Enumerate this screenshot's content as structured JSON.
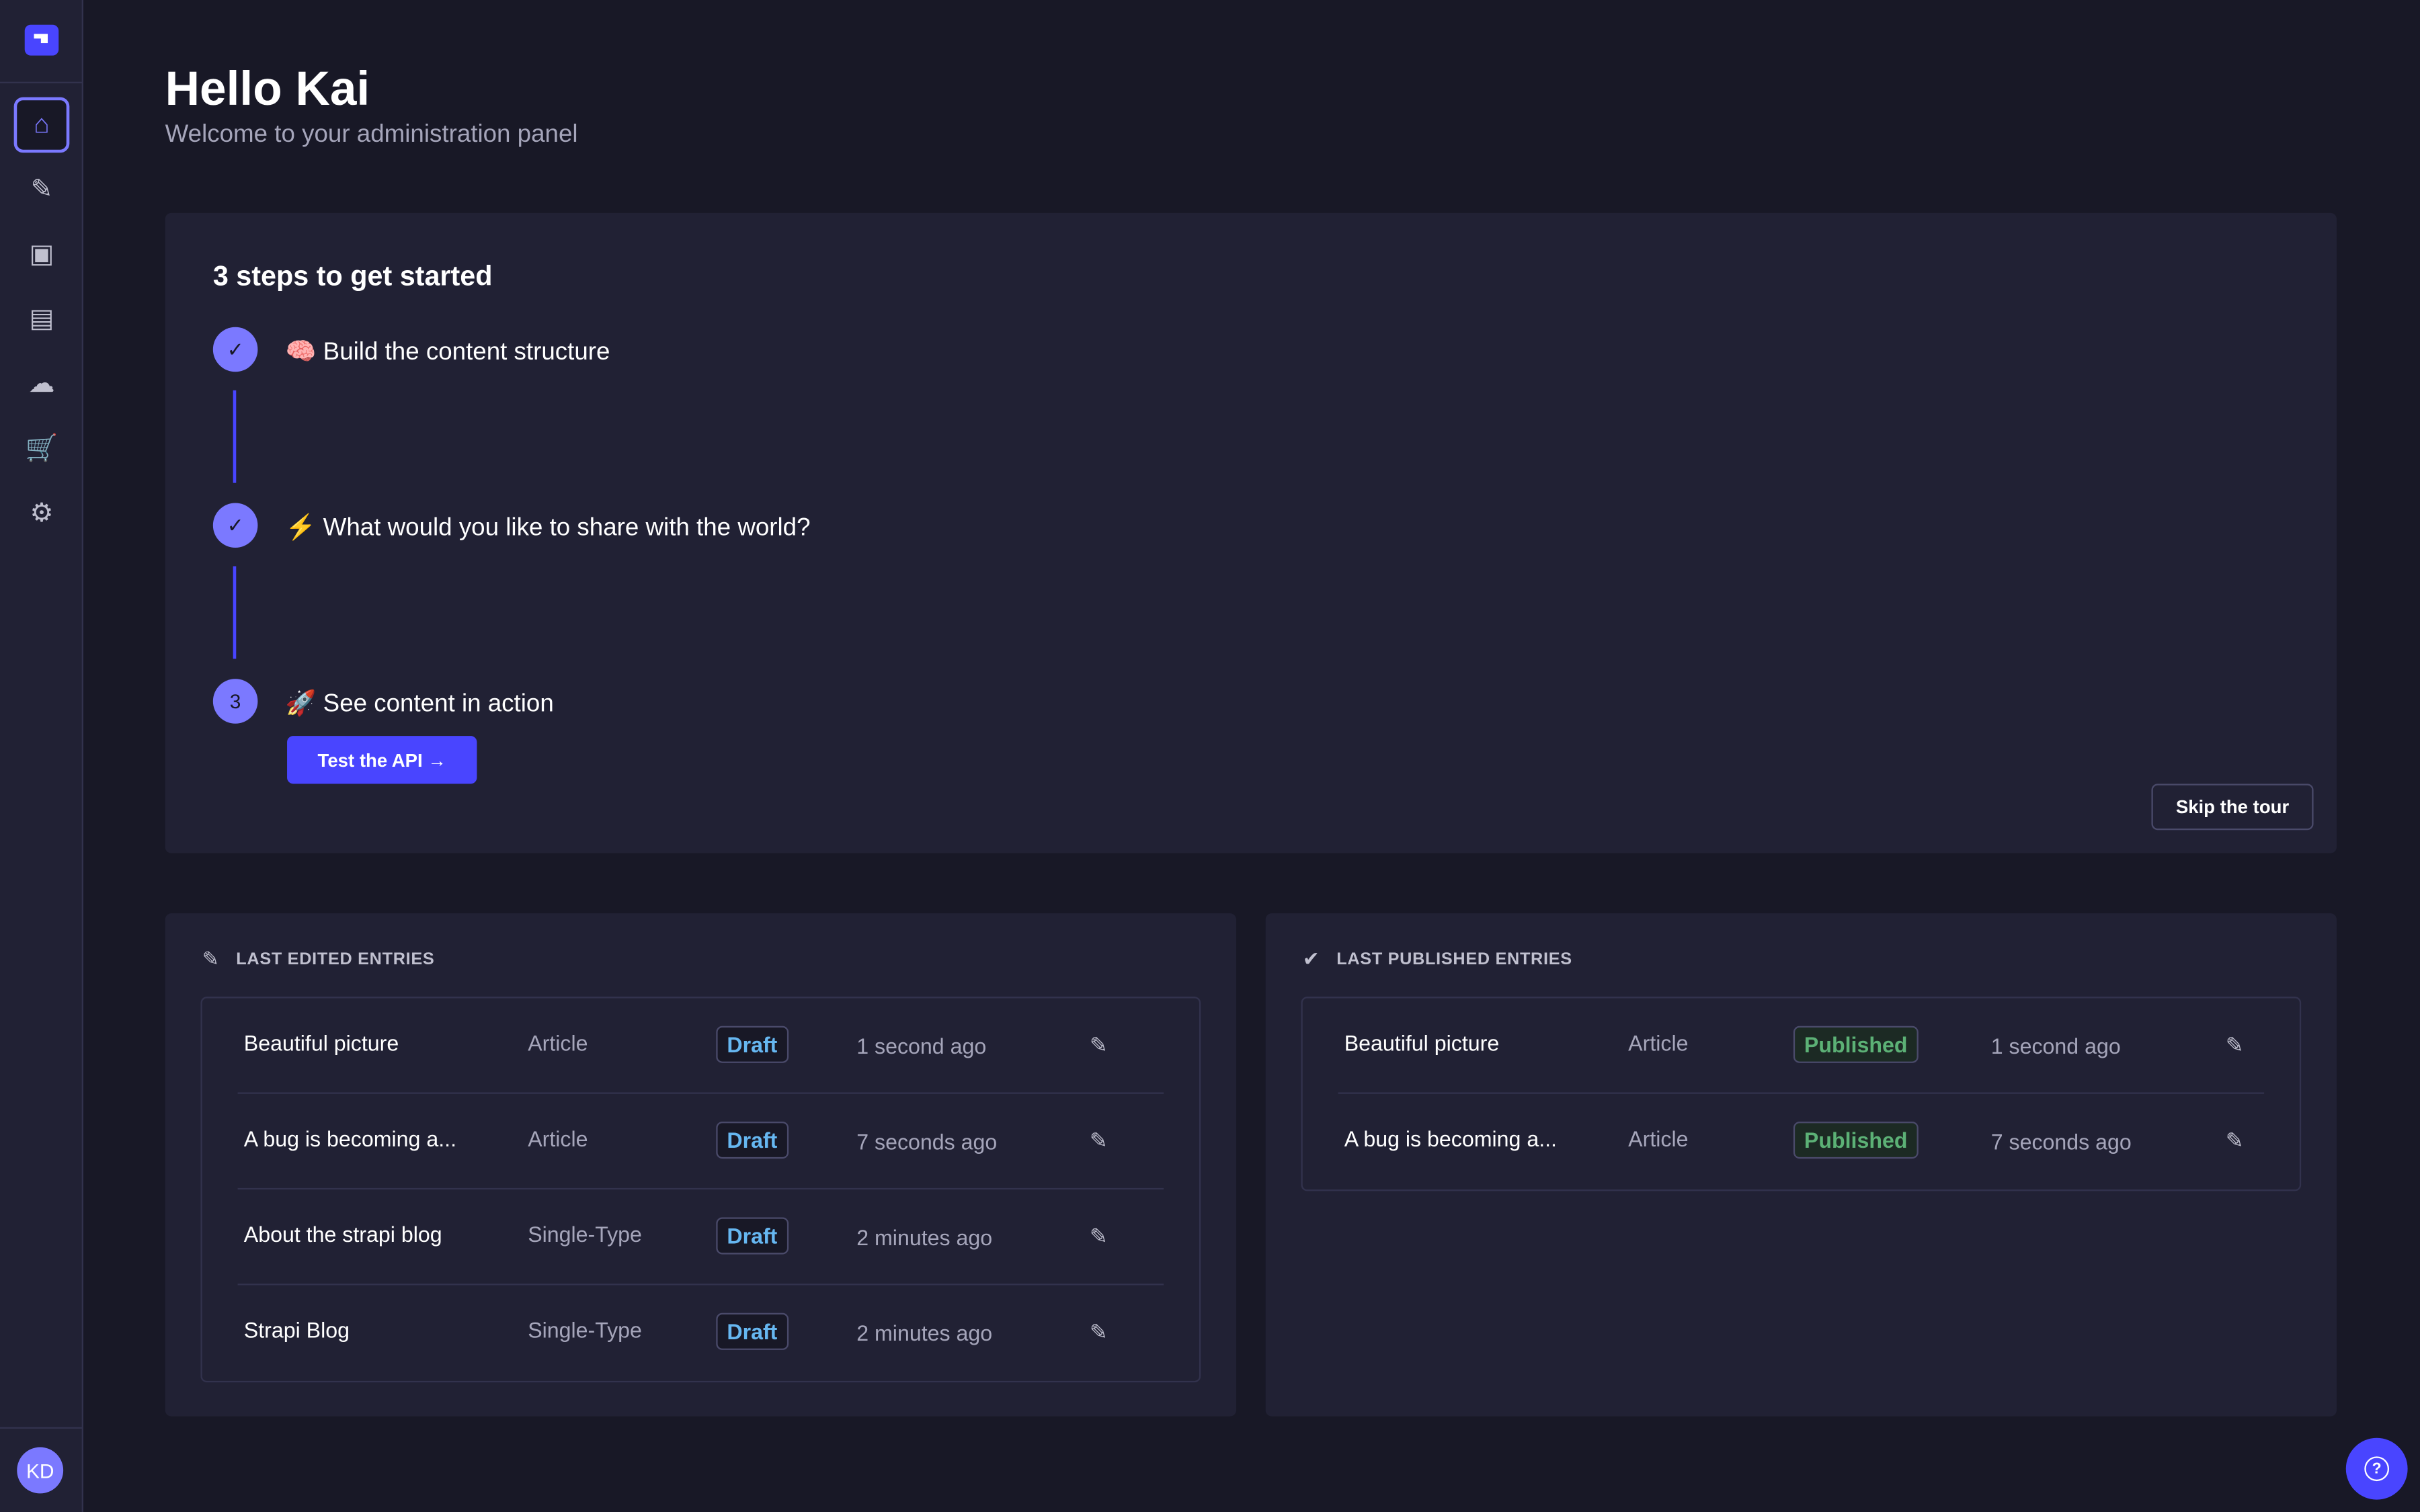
{
  "sidebar": {
    "items": [
      {
        "name": "home",
        "icon": "⌂"
      },
      {
        "name": "content-manager",
        "icon": "✎"
      },
      {
        "name": "media-library",
        "icon": "▣"
      },
      {
        "name": "content-type-builder",
        "icon": "▤"
      },
      {
        "name": "cloud",
        "icon": "☁"
      },
      {
        "name": "marketplace",
        "icon": "🛒"
      },
      {
        "name": "settings",
        "icon": "⚙"
      }
    ],
    "avatar": "KD"
  },
  "header": {
    "title": "Hello Kai",
    "subtitle": "Welcome to your administration panel"
  },
  "guided_tour": {
    "title": "3 steps to get started",
    "steps": [
      {
        "marker": "✓",
        "label": "🧠 Build the content structure"
      },
      {
        "marker": "✓",
        "label": "⚡ What would you like to share with the world?"
      },
      {
        "marker": "3",
        "label": "🚀 See content in action"
      }
    ],
    "cta": "Test the API  →",
    "skip": "Skip the tour"
  },
  "last_edited": {
    "title": "LAST EDITED ENTRIES",
    "rows": [
      {
        "name": "Beautiful picture",
        "type": "Article",
        "status": "Draft",
        "time": "1 second ago"
      },
      {
        "name": "A bug is becoming a...",
        "type": "Article",
        "status": "Draft",
        "time": "7 seconds ago"
      },
      {
        "name": "About the strapi blog",
        "type": "Single-Type",
        "status": "Draft",
        "time": "2 minutes ago"
      },
      {
        "name": "Strapi Blog",
        "type": "Single-Type",
        "status": "Draft",
        "time": "2 minutes ago"
      }
    ]
  },
  "last_published": {
    "title": "LAST PUBLISHED ENTRIES",
    "rows": [
      {
        "name": "Beautiful picture",
        "type": "Article",
        "status": "Published",
        "time": "1 second ago"
      },
      {
        "name": "A bug is becoming a...",
        "type": "Article",
        "status": "Published",
        "time": "7 seconds ago"
      }
    ]
  },
  "help": "?",
  "colors": {
    "primary": "#4945ff",
    "accent": "#7b79ff",
    "draft": "#66b7f1",
    "published": "#5cb176"
  }
}
